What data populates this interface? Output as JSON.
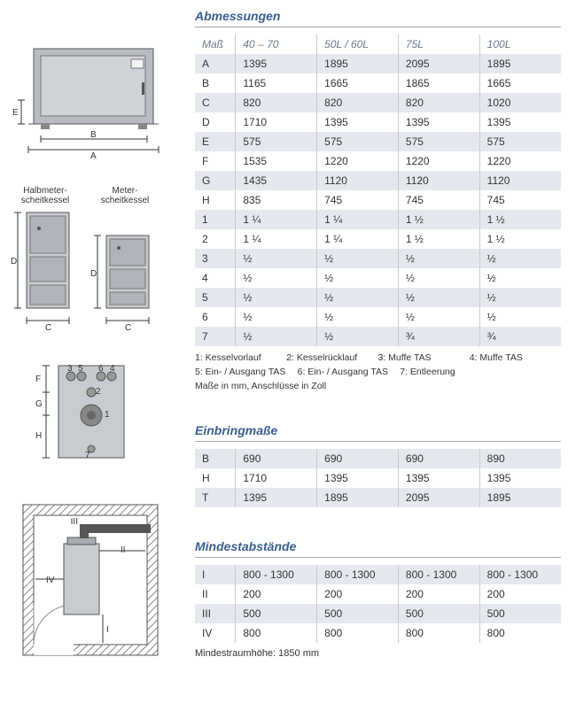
{
  "sections": {
    "dimensions": {
      "title": "Abmessungen",
      "header": [
        "Maß",
        "40 – 70",
        "50L / 60L",
        "75L",
        "100L"
      ],
      "rows": [
        [
          "A",
          "1395",
          "1895",
          "2095",
          "1895"
        ],
        [
          "B",
          "1165",
          "1665",
          "1865",
          "1665"
        ],
        [
          "C",
          "820",
          "820",
          "820",
          "1020"
        ],
        [
          "D",
          "1710",
          "1395",
          "1395",
          "1395"
        ],
        [
          "E",
          "575",
          "575",
          "575",
          "575"
        ],
        [
          "F",
          "1535",
          "1220",
          "1220",
          "1220"
        ],
        [
          "G",
          "1435",
          "1120",
          "1120",
          "1120"
        ],
        [
          "H",
          "835",
          "745",
          "745",
          "745"
        ],
        [
          "1",
          "1 ¼",
          "1 ¼",
          "1 ½",
          "1 ½"
        ],
        [
          "2",
          "1 ¼",
          "1 ¼",
          "1 ½",
          "1 ½"
        ],
        [
          "3",
          "½",
          "½",
          "½",
          "½"
        ],
        [
          "4",
          "½",
          "½",
          "½",
          "½"
        ],
        [
          "5",
          "½",
          "½",
          "½",
          "½"
        ],
        [
          "6",
          "½",
          "½",
          "½",
          "½"
        ],
        [
          "7",
          "½",
          "½",
          "¾",
          "¾"
        ]
      ],
      "legend": [
        "1: Kesselvorlauf",
        "2: Kesselrücklauf",
        "3: Muffe TAS",
        "4: Muffe TAS",
        "5: Ein- / Ausgang TAS",
        "6: Ein- / Ausgang TAS",
        "7: Entleerung",
        "",
        "Maße in mm, Anschlüsse in Zoll"
      ]
    },
    "einbring": {
      "title": "Einbringmaße",
      "rows": [
        [
          "B",
          "690",
          "690",
          "690",
          "890"
        ],
        [
          "H",
          "1710",
          "1395",
          "1395",
          "1395"
        ],
        [
          "T",
          "1395",
          "1895",
          "2095",
          "1895"
        ]
      ]
    },
    "mindest": {
      "title": "Mindestabstände",
      "rows": [
        [
          "I",
          "800 - 1300",
          "800 - 1300",
          "800 - 1300",
          "800 - 1300"
        ],
        [
          "II",
          "200",
          "200",
          "200",
          "200"
        ],
        [
          "III",
          "500",
          "500",
          "500",
          "500"
        ],
        [
          "IV",
          "800",
          "800",
          "800",
          "800"
        ]
      ],
      "footnote": "Mindestraumhöhe: 1850 mm"
    }
  },
  "left": {
    "halbmeter": "Halbmeter-\nscheitkessel",
    "meter": "Meter-\nscheitkessel"
  },
  "colors": {
    "heading": "#3a5f8f",
    "row_alt": "#e5e9ef",
    "border": "#cccccc",
    "muted": "#6a7a8a"
  }
}
